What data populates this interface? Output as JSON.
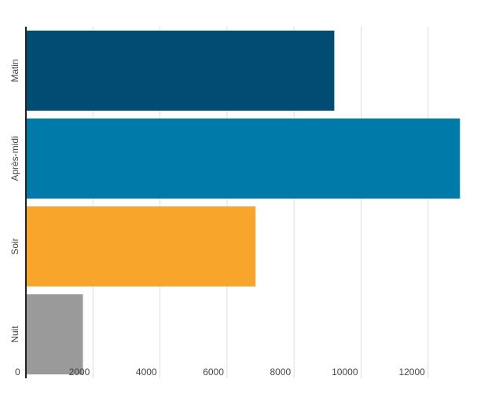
{
  "chart_data": {
    "type": "bar",
    "orientation": "horizontal",
    "categories": [
      "Matin",
      "Après-midi",
      "Soir",
      "Nuit"
    ],
    "values": [
      9200,
      12950,
      6850,
      1700
    ],
    "colors": [
      "#004c72",
      "#007aa8",
      "#f8a52b",
      "#9a9a9a"
    ],
    "xlim": [
      0,
      13200
    ],
    "xticks": [
      0,
      2000,
      4000,
      6000,
      8000,
      10000,
      12000
    ],
    "grid": "vertical",
    "title": "",
    "xlabel": "",
    "ylabel": ""
  }
}
